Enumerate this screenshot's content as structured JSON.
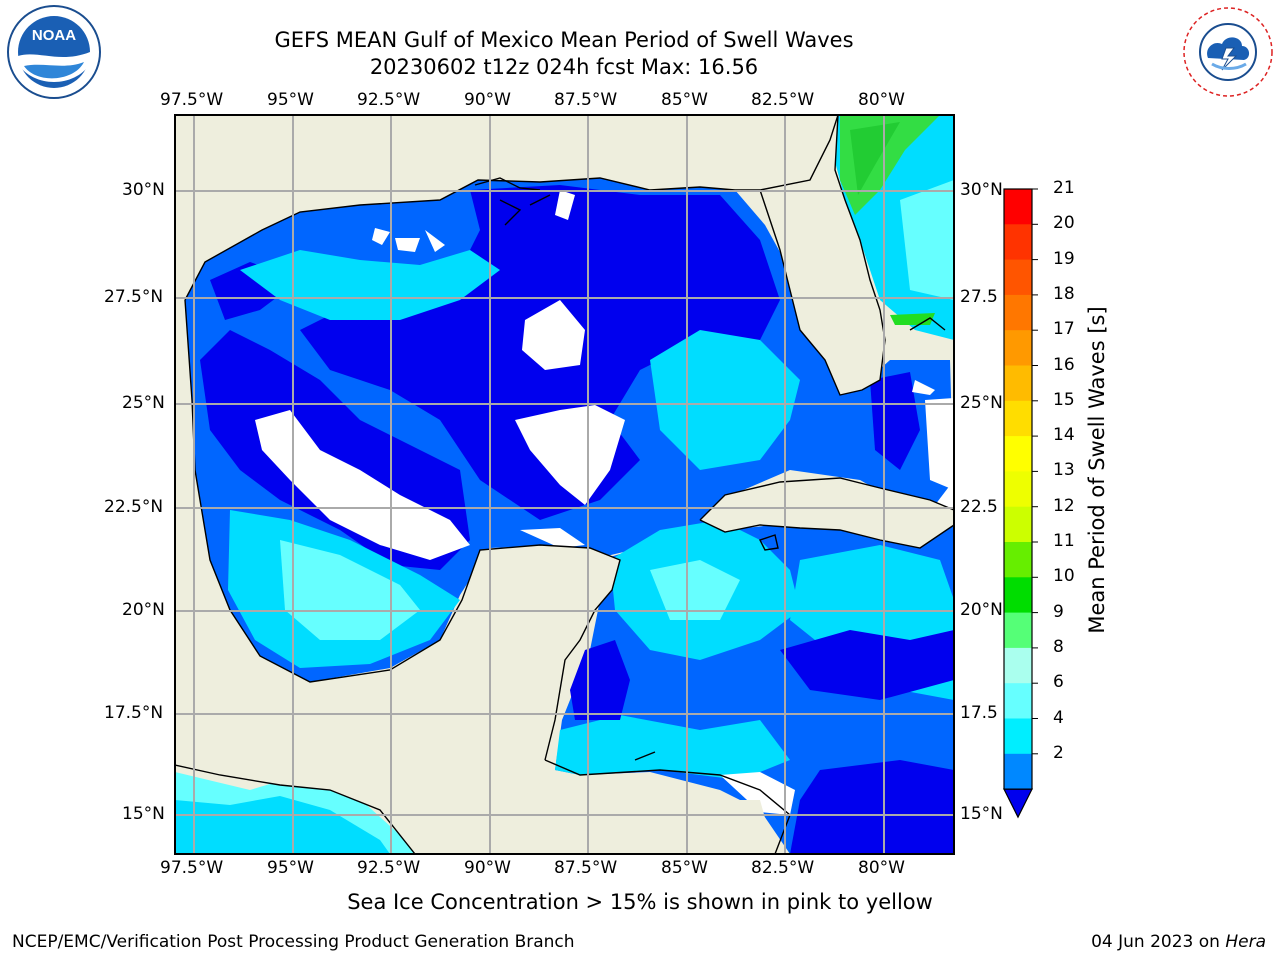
{
  "header": {
    "title_line1": "GEFS MEAN Gulf of Mexico Mean Period of Swell Waves",
    "title_line2": "20230602 t12z 024h fcst   Max: 16.56"
  },
  "logos": {
    "left": "NOAA",
    "right": "NATIONAL WEATHER SERVICE",
    "left_ring_text": "NATIONAL OCEANIC AND ATMOSPHERIC ADMINISTRATION · U.S. DEPARTMENT OF COMMERCE"
  },
  "map": {
    "lon_ticks_top": [
      "97.5°W",
      "95°W",
      "92.5°W",
      "90°W",
      "87.5°W",
      "85°W",
      "82.5°W",
      "80°W"
    ],
    "lon_ticks_bottom": [
      "97.5°W",
      "95°W",
      "92.5°W",
      "90°W",
      "87.5°W",
      "85°W",
      "82.5°W",
      "80°W"
    ],
    "lat_ticks_left": [
      "30°N",
      "27.5°N",
      "25°N",
      "22.5°N",
      "20°N",
      "17.5°N",
      "15°N"
    ],
    "lat_ticks_right": [
      "30°N",
      "27.5",
      "25°N",
      "22.5",
      "20°N",
      "17.5",
      "15°N"
    ],
    "colors": {
      "land": "#eeeedd",
      "ocean_deep": "#0000ee",
      "ocean_mid": "#0066ff",
      "ocean_light": "#00ddff",
      "ocean_pale": "#66ffff",
      "nodata": "#ffffff",
      "grid": "#aaaaaa"
    }
  },
  "colorbar": {
    "label": "Mean Period of Swell Waves [s]",
    "ticks": [
      "21",
      "20",
      "19",
      "18",
      "17",
      "16",
      "15",
      "14",
      "13",
      "12",
      "11",
      "10",
      "9",
      "8",
      "6",
      "4",
      "2"
    ],
    "colors": [
      "#ff0000",
      "#ff3300",
      "#ff5500",
      "#ff7700",
      "#ff9900",
      "#ffbb00",
      "#ffdd00",
      "#ffff00",
      "#eeff00",
      "#ccff00",
      "#66ee00",
      "#00dd00",
      "#55ff77",
      "#aaffee",
      "#66ffff",
      "#00eeff",
      "#0088ff",
      "#0000ee"
    ]
  },
  "footer": {
    "note": "Sea Ice Concentration > 15% is shown in pink to yellow",
    "left": "NCEP/EMC/Verification Post Processing Product Generation Branch",
    "date": "04 Jun 2023 on",
    "host": "Hera"
  }
}
